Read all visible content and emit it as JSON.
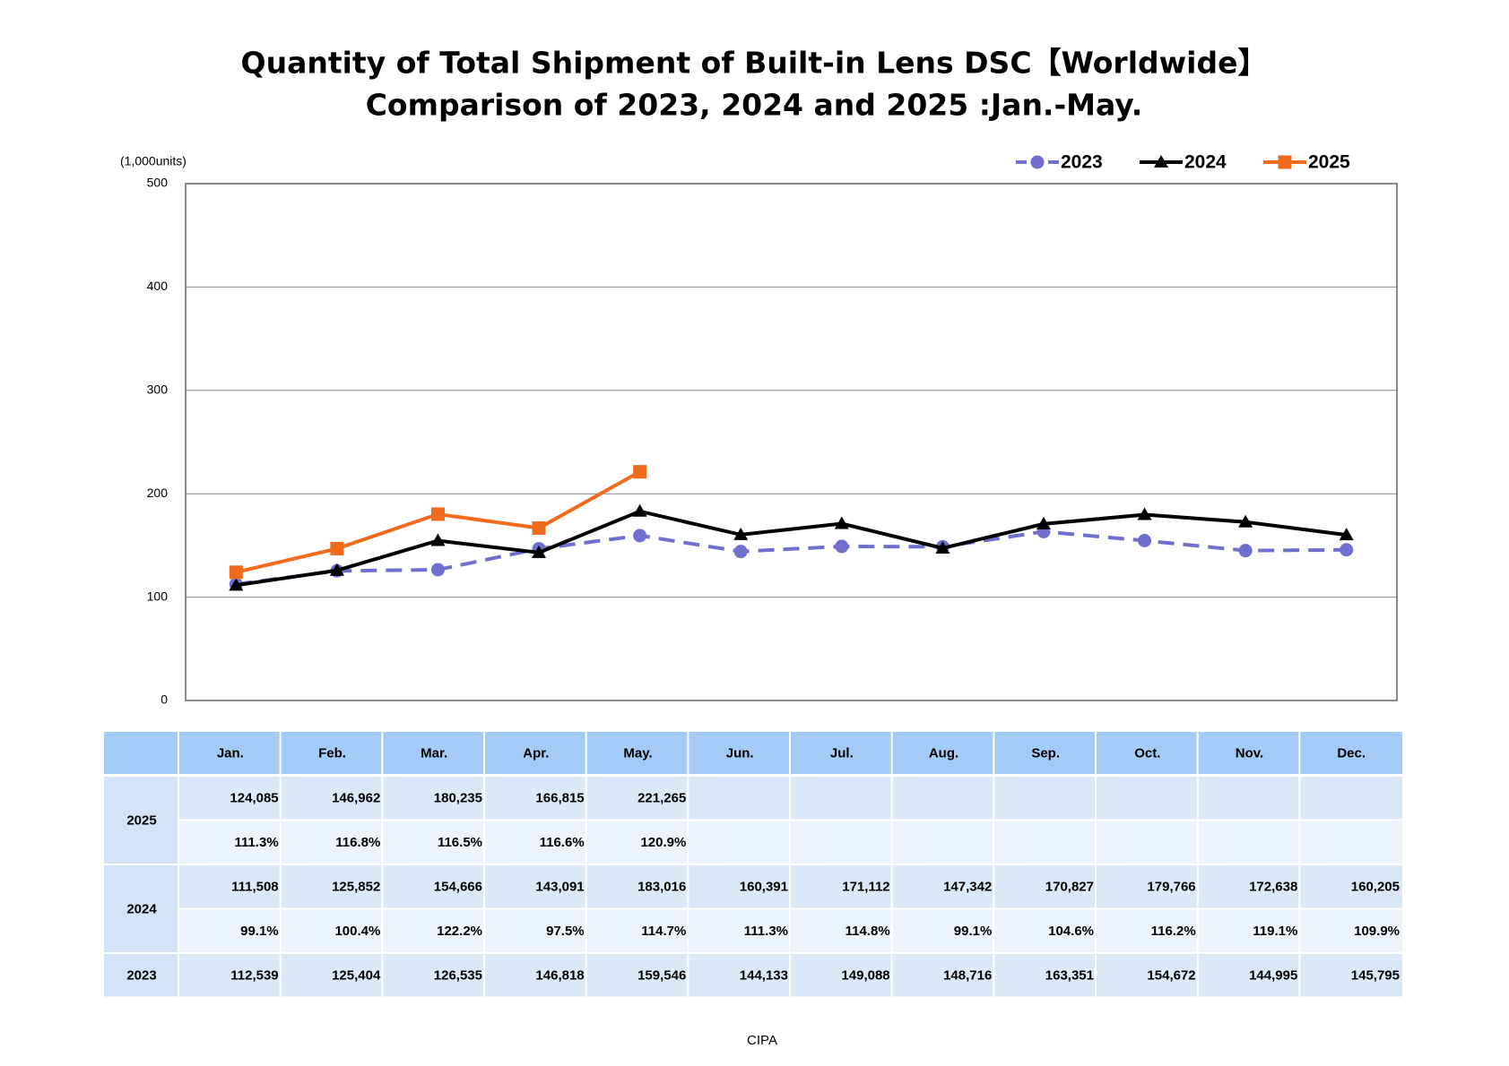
{
  "chart_data": {
    "type": "line",
    "title": [
      "Quantity of Total Shipment of Built-in Lens DSC【Worldwide】",
      "Comparison of 2023, 2024 and 2025 :Jan.-May."
    ],
    "y_label": "(1,000units)",
    "categories": [
      "Jan.",
      "Feb.",
      "Mar.",
      "Apr.",
      "May.",
      "Jun.",
      "Jul.",
      "Aug.",
      "Sep.",
      "Oct.",
      "Nov.",
      "Dec."
    ],
    "series": [
      {
        "name": "2023",
        "color": "#6f6fcf",
        "dash": true,
        "marker": "circle",
        "values": [
          112.539,
          125.404,
          126.535,
          146.818,
          159.546,
          144.133,
          149.088,
          148.716,
          163.351,
          154.672,
          144.995,
          145.795
        ],
        "value_labels": [
          "112,539",
          "125,404",
          "126,535",
          "146,818",
          "159,546",
          "144,133",
          "149,088",
          "148,716",
          "163,351",
          "154,672",
          "144,995",
          "145,795"
        ]
      },
      {
        "name": "2024",
        "color": "#000000",
        "dash": false,
        "marker": "triangle",
        "values": [
          111.508,
          125.852,
          154.666,
          143.091,
          183.016,
          160.391,
          171.112,
          147.342,
          170.827,
          179.766,
          172.638,
          160.205
        ],
        "value_labels": [
          "111,508",
          "125,852",
          "154,666",
          "143,091",
          "183,016",
          "160,391",
          "171,112",
          "147,342",
          "170,827",
          "179,766",
          "172,638",
          "160,205"
        ]
      },
      {
        "name": "2025",
        "color": "#f26b1d",
        "dash": false,
        "marker": "square",
        "values": [
          124.085,
          146.962,
          180.235,
          166.815,
          221.265,
          null,
          null,
          null,
          null,
          null,
          null,
          null
        ],
        "value_labels": [
          "124,085",
          "146,962",
          "180,235",
          "166,815",
          "221,265",
          null,
          null,
          null,
          null,
          null,
          null,
          null
        ]
      }
    ],
    "ylim": [
      0,
      500
    ],
    "yticks": [
      0,
      100,
      200,
      300,
      400,
      500
    ],
    "grid": true,
    "legend": "top-right"
  },
  "table": {
    "yoy": {
      "2025": [
        "111.3%",
        "116.8%",
        "116.5%",
        "116.6%",
        "120.9%",
        null,
        null,
        null,
        null,
        null,
        null,
        null
      ],
      "2024": [
        "99.1%",
        "100.4%",
        "122.2%",
        "97.5%",
        "114.7%",
        "111.3%",
        "114.8%",
        "99.1%",
        "104.6%",
        "116.2%",
        "119.1%",
        "109.9%"
      ]
    }
  },
  "source": "CIPA"
}
